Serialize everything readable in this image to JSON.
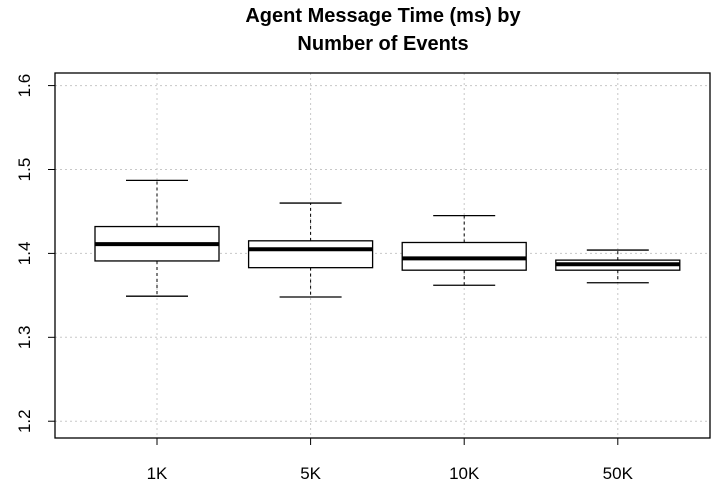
{
  "chart_data": {
    "type": "box",
    "title": "Agent Message Time (ms) by\nNumber of Events",
    "title_lines": [
      "Agent Message Time (ms) by",
      "Number of Events"
    ],
    "xlabel": "",
    "ylabel": "",
    "categories": [
      "1K",
      "5K",
      "10K",
      "50K"
    ],
    "ylim": [
      1.18,
      1.615
    ],
    "yticks": [
      1.2,
      1.3,
      1.4,
      1.5,
      1.6
    ],
    "ytick_labels": [
      "1.2",
      "1.3",
      "1.4",
      "1.5",
      "1.6"
    ],
    "grid": true,
    "boxes": [
      {
        "category": "1K",
        "whisker_low": 1.349,
        "q1": 1.391,
        "median": 1.411,
        "q3": 1.432,
        "whisker_high": 1.487
      },
      {
        "category": "5K",
        "whisker_low": 1.348,
        "q1": 1.383,
        "median": 1.405,
        "q3": 1.415,
        "whisker_high": 1.46
      },
      {
        "category": "10K",
        "whisker_low": 1.362,
        "q1": 1.38,
        "median": 1.394,
        "q3": 1.413,
        "whisker_high": 1.445
      },
      {
        "category": "50K",
        "whisker_low": 1.365,
        "q1": 1.38,
        "median": 1.387,
        "q3": 1.392,
        "whisker_high": 1.404
      }
    ]
  }
}
